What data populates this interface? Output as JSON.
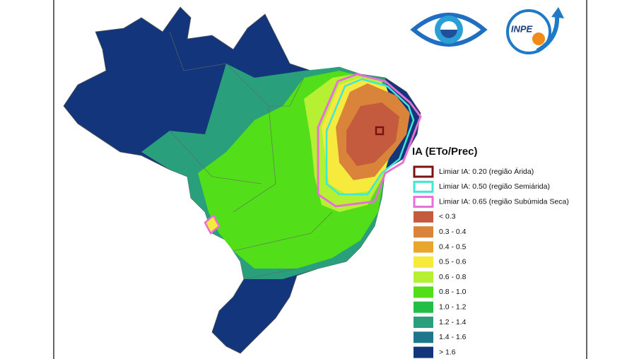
{
  "legend": {
    "title": "IA (ETo/Prec)",
    "thresholds": [
      {
        "label": "Limiar IA: 0.20 (região Árida)",
        "color": "#7a1414"
      },
      {
        "label": "Limiar IA: 0.50 (região Semiárida)",
        "color": "#3ee8d2"
      },
      {
        "label": "Limiar IA: 0.65 (região Subúmida Seca)",
        "color": "#e66fd8"
      }
    ],
    "classes": [
      {
        "label": "< 0.3",
        "color": "#c55b3e"
      },
      {
        "label": "0.3 - 0.4",
        "color": "#d9843a"
      },
      {
        "label": "0.4 - 0.5",
        "color": "#eaa62c"
      },
      {
        "label": "0.5 - 0.6",
        "color": "#f6ea3c"
      },
      {
        "label": "0.6 - 0.8",
        "color": "#b6f032"
      },
      {
        "label": "0.8 - 1.0",
        "color": "#52de18"
      },
      {
        "label": "1.0 - 1.2",
        "color": "#22bf48"
      },
      {
        "label": "1.2 - 1.4",
        "color": "#2a9f7c"
      },
      {
        "label": "1.4 - 1.6",
        "color": "#1e768c"
      },
      {
        "label": "> 1.6",
        "color": "#12357c"
      }
    ]
  },
  "logos": {
    "inpe": "INPE"
  }
}
